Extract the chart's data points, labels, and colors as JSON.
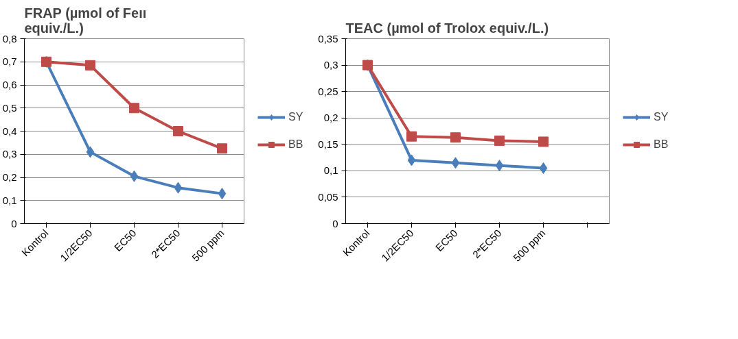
{
  "chart_data": [
    {
      "type": "line",
      "title": "FRAP (µmol of Feıı\nequiv./L.)",
      "categories": [
        "Kontrol",
        "1/2EC50",
        "EC50",
        "2*EC50",
        "500 ppm"
      ],
      "series": [
        {
          "name": "SY",
          "color": "#4a7ebb",
          "marker": "diamond",
          "values": [
            0.7,
            0.31,
            0.205,
            0.155,
            0.13
          ]
        },
        {
          "name": "BB",
          "color": "#be4b48",
          "marker": "square",
          "values": [
            0.7,
            0.685,
            0.5,
            0.4,
            0.325
          ]
        }
      ],
      "ylim": [
        0,
        0.8
      ],
      "yticks": [
        0,
        {
          "value": 0.1,
          "label": "0,1"
        },
        {
          "value": 0.2,
          "label": "0,2"
        },
        {
          "value": 0.3,
          "label": "0,3"
        },
        {
          "value": 0.4,
          "label": "0,4"
        },
        {
          "value": 0.5,
          "label": "0,5"
        },
        {
          "value": 0.6,
          "label": "0,6"
        },
        {
          "value": 0.7,
          "label": "0,7"
        },
        {
          "value": 0.8,
          "label": "0,8"
        }
      ],
      "grid": "y",
      "legend": "right"
    },
    {
      "type": "line",
      "title": "TEAC (µmol of Trolox equiv./L.)",
      "categories": [
        "Kontrol",
        "1/2EC50",
        "EC50",
        "2*EC50",
        "500 ppm",
        null
      ],
      "series": [
        {
          "name": "SY",
          "color": "#4a7ebb",
          "marker": "diamond",
          "values": [
            0.3,
            0.12,
            0.115,
            0.11,
            0.105,
            null
          ]
        },
        {
          "name": "BB",
          "color": "#be4b48",
          "marker": "square",
          "values": [
            0.3,
            0.165,
            0.163,
            0.157,
            0.155,
            null
          ]
        }
      ],
      "ylim": [
        0,
        0.35
      ],
      "yticks": [
        0,
        {
          "value": 0.05,
          "label": "0,05"
        },
        {
          "value": 0.1,
          "label": "0,1"
        },
        {
          "value": 0.15,
          "label": "0,15"
        },
        {
          "value": 0.2,
          "label": "0,2"
        },
        {
          "value": 0.25,
          "label": "0,25"
        },
        {
          "value": 0.3,
          "label": "0,3"
        },
        {
          "value": 0.35,
          "label": "0,35"
        }
      ],
      "grid": "y",
      "legend": "right"
    }
  ]
}
